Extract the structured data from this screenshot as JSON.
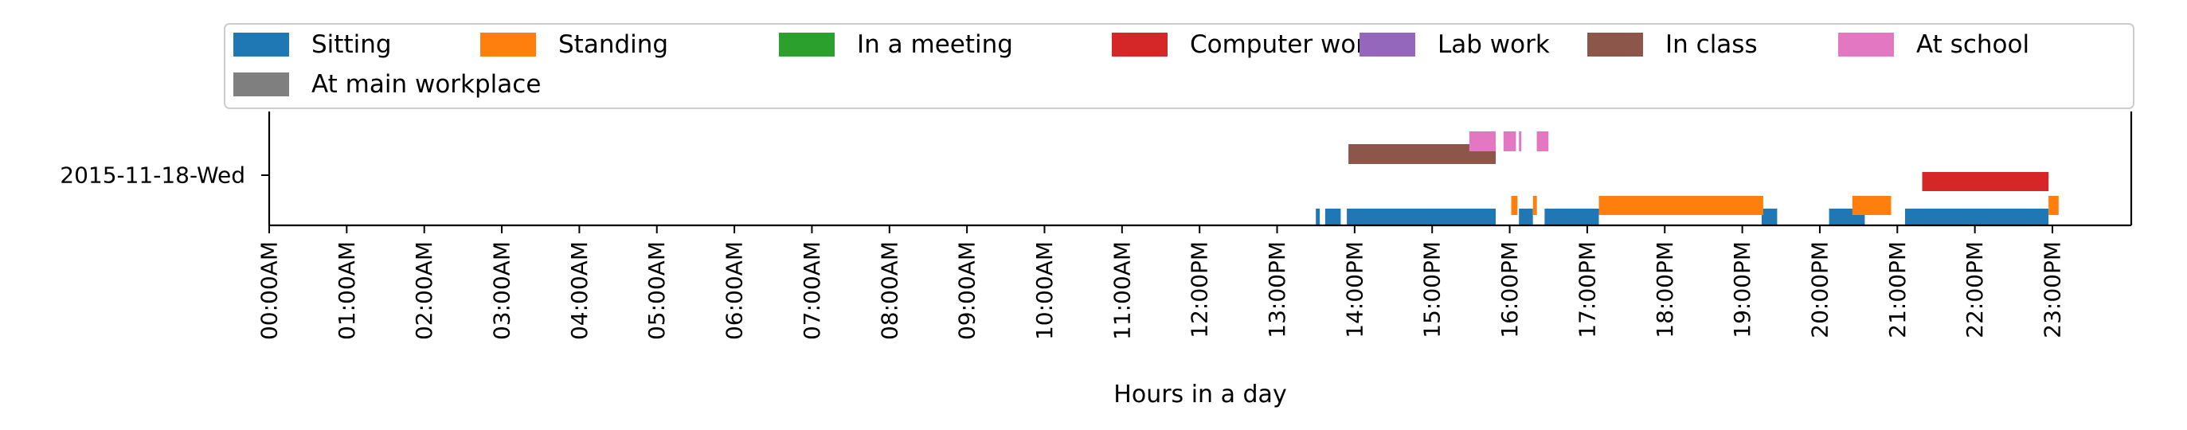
{
  "chart_data": {
    "type": "timeline",
    "xlabel": "Hours in a day",
    "xlim": [
      0,
      24
    ],
    "x_ticks": [
      {
        "value": 0,
        "label": "00:00AM"
      },
      {
        "value": 1,
        "label": "01:00AM"
      },
      {
        "value": 2,
        "label": "02:00AM"
      },
      {
        "value": 3,
        "label": "03:00AM"
      },
      {
        "value": 4,
        "label": "04:00AM"
      },
      {
        "value": 5,
        "label": "05:00AM"
      },
      {
        "value": 6,
        "label": "06:00AM"
      },
      {
        "value": 7,
        "label": "07:00AM"
      },
      {
        "value": 8,
        "label": "08:00AM"
      },
      {
        "value": 9,
        "label": "09:00AM"
      },
      {
        "value": 10,
        "label": "10:00AM"
      },
      {
        "value": 11,
        "label": "11:00AM"
      },
      {
        "value": 12,
        "label": "12:00PM"
      },
      {
        "value": 13,
        "label": "13:00PM"
      },
      {
        "value": 14,
        "label": "14:00PM"
      },
      {
        "value": 15,
        "label": "15:00PM"
      },
      {
        "value": 16,
        "label": "16:00PM"
      },
      {
        "value": 17,
        "label": "17:00PM"
      },
      {
        "value": 18,
        "label": "18:00PM"
      },
      {
        "value": 19,
        "label": "19:00PM"
      },
      {
        "value": 20,
        "label": "20:00PM"
      },
      {
        "value": 21,
        "label": "21:00PM"
      },
      {
        "value": 22,
        "label": "22:00PM"
      },
      {
        "value": 23,
        "label": "23:00PM"
      }
    ],
    "y_ticks": [
      "2015-11-18-Wed"
    ],
    "legend_position": "top",
    "series": [
      {
        "name": "Sitting",
        "color": "#1f77b4",
        "level": 0,
        "intervals": [
          [
            13.5,
            13.55
          ],
          [
            13.62,
            13.82
          ],
          [
            13.9,
            15.82
          ],
          [
            16.12,
            16.3
          ],
          [
            16.45,
            17.15
          ],
          [
            19.25,
            19.45
          ],
          [
            20.12,
            20.58
          ],
          [
            21.1,
            22.95
          ]
        ]
      },
      {
        "name": "Standing",
        "color": "#ff7f0e",
        "level": 1,
        "intervals": [
          [
            16.02,
            16.1
          ],
          [
            16.3,
            16.35
          ],
          [
            17.15,
            19.27
          ],
          [
            20.42,
            20.92
          ],
          [
            22.95,
            23.08
          ]
        ]
      },
      {
        "name": "In a meeting",
        "color": "#2ca02c",
        "level": 2,
        "intervals": []
      },
      {
        "name": "Computer work",
        "color": "#d62728",
        "level": 3,
        "intervals": [
          [
            21.32,
            22.95
          ]
        ]
      },
      {
        "name": "Lab work",
        "color": "#9467bd",
        "level": 4,
        "intervals": []
      },
      {
        "name": "In class",
        "color": "#8c564b",
        "level": 5,
        "intervals": [
          [
            13.92,
            15.82
          ]
        ]
      },
      {
        "name": "At school",
        "color": "#e377c2",
        "level": 6,
        "intervals": [
          [
            15.48,
            15.82
          ],
          [
            15.92,
            16.08
          ],
          [
            16.12,
            16.15
          ],
          [
            16.35,
            16.5
          ]
        ]
      },
      {
        "name": "At main workplace",
        "color": "#7f7f7f",
        "level": 7,
        "intervals": []
      }
    ]
  }
}
